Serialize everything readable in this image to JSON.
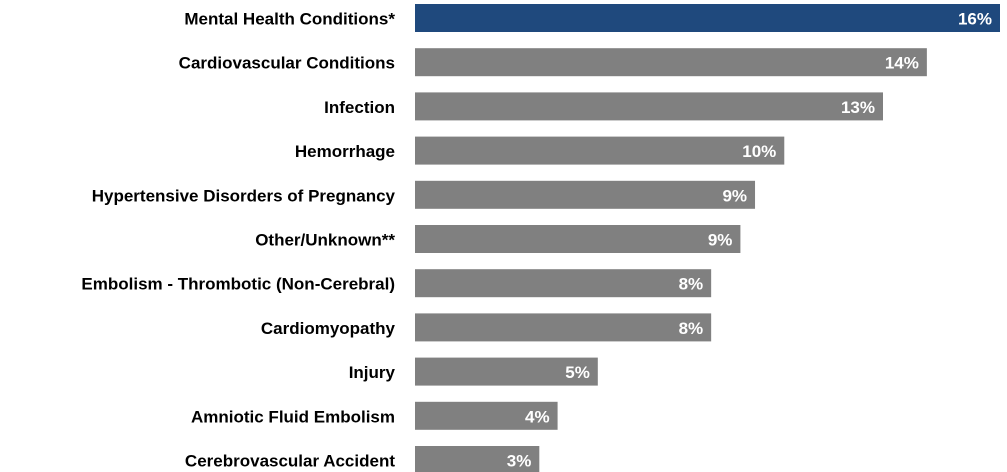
{
  "chart_data": {
    "type": "hbar",
    "categories": [
      "Mental Health Conditions*",
      "Cardiovascular Conditions",
      "Infection",
      "Hemorrhage",
      "Hypertensive Disorders of Pregnancy",
      "Other/Unknown**",
      "Embolism - Thrombotic (Non-Cerebral)",
      "Cardiomyopathy",
      "Injury",
      "Amniotic Fluid Embolism",
      "Cerebrovascular Accident"
    ],
    "values": [
      16,
      14,
      12.8,
      10.1,
      9.3,
      8.9,
      8.1,
      8.1,
      5,
      3.9,
      3.4
    ],
    "value_labels": [
      "16%",
      "14%",
      "13%",
      "10%",
      "9%",
      "9%",
      "8%",
      "8%",
      "5%",
      "4%",
      "3%"
    ],
    "colors": [
      "#1f497d",
      "#808080",
      "#808080",
      "#808080",
      "#808080",
      "#808080",
      "#808080",
      "#808080",
      "#808080",
      "#808080",
      "#808080"
    ],
    "xlim": [
      0,
      16
    ]
  }
}
